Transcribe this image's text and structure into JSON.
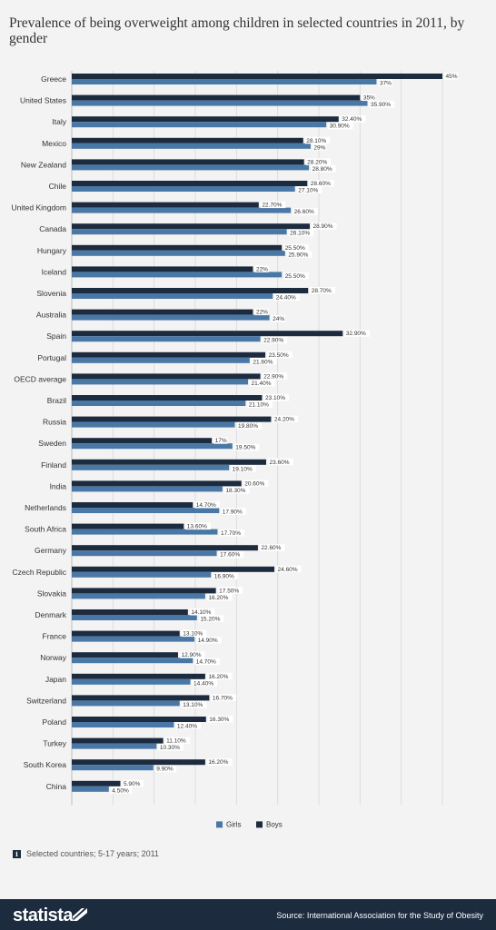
{
  "page": {
    "title": "Prevalence of being overweight among children in selected countries in 2011, by gender",
    "note": "Selected countries; 5-17 years; 2011",
    "note_icon": "info-icon",
    "brand": "statista",
    "source": "Source: International Association for the Study of Obesity"
  },
  "colors": {
    "boys": "#1d2b3f",
    "girls": "#4a78a6",
    "background": "#f3f3f3"
  },
  "chart_data": {
    "type": "bar",
    "orientation": "horizontal",
    "categories": [
      "Greece",
      "United States",
      "Italy",
      "Mexico",
      "New Zealand",
      "Chile",
      "United Kingdom",
      "Canada",
      "Hungary",
      "Iceland",
      "Slovenia",
      "Australia",
      "Spain",
      "Portugal",
      "OECD average",
      "Brazil",
      "Russia",
      "Sweden",
      "Finland",
      "India",
      "Netherlands",
      "South Africa",
      "Germany",
      "Czech Republic",
      "Slovakia",
      "Denmark",
      "France",
      "Norway",
      "Japan",
      "Switzerland",
      "Poland",
      "Turkey",
      "South Korea",
      "China"
    ],
    "series": [
      {
        "name": "Boys",
        "values": [
          45,
          35,
          32.4,
          28.1,
          28.2,
          28.6,
          22.7,
          28.9,
          25.5,
          22,
          28.7,
          22,
          32.9,
          23.5,
          22.9,
          23.1,
          24.2,
          17,
          23.6,
          20.6,
          14.7,
          13.6,
          22.6,
          24.6,
          17.5,
          14.1,
          13.1,
          12.9,
          16.2,
          16.7,
          16.3,
          11.1,
          16.2,
          5.9
        ],
        "labels": [
          "45%",
          "35%",
          "32.40%",
          "28.10%",
          "28.20%",
          "28.60%",
          "22.70%",
          "28.90%",
          "25.50%",
          "22%",
          "28.70%",
          "22%",
          "32.90%",
          "23.50%",
          "22.90%",
          "23.10%",
          "24.20%",
          "17%",
          "23.60%",
          "20.60%",
          "14.70%",
          "13.60%",
          "22.60%",
          "24.60%",
          "17.50%",
          "14.10%",
          "13.10%",
          "12.90%",
          "16.20%",
          "16.70%",
          "16.30%",
          "11.10%",
          "16.20%",
          "5.90%"
        ]
      },
      {
        "name": "Girls",
        "values": [
          37,
          35.9,
          30.9,
          29,
          28.8,
          27.1,
          26.6,
          26.1,
          25.9,
          25.5,
          24.4,
          24,
          22.9,
          21.6,
          21.4,
          21.1,
          19.8,
          19.5,
          19.1,
          18.3,
          17.9,
          17.7,
          17.6,
          16.9,
          16.2,
          15.2,
          14.9,
          14.7,
          14.4,
          13.1,
          12.4,
          10.3,
          9.9,
          4.5
        ],
        "labels": [
          "37%",
          "35.90%",
          "30.90%",
          "29%",
          "28.80%",
          "27.10%",
          "26.60%",
          "26.10%",
          "25.90%",
          "25.50%",
          "24.40%",
          "24%",
          "22.90%",
          "21.60%",
          "21.40%",
          "21.10%",
          "19.80%",
          "19.50%",
          "19.10%",
          "18.30%",
          "17.90%",
          "17.70%",
          "17.60%",
          "16.90%",
          "16.20%",
          "15.20%",
          "14.90%",
          "14.70%",
          "14.40%",
          "13.10%",
          "12.40%",
          "10.30%",
          "9.90%",
          "4.50%"
        ]
      }
    ],
    "xlim": [
      0,
      45
    ],
    "grid": true,
    "legend": {
      "position": "bottom-center",
      "entries": [
        "Girls",
        "Boys"
      ]
    }
  }
}
